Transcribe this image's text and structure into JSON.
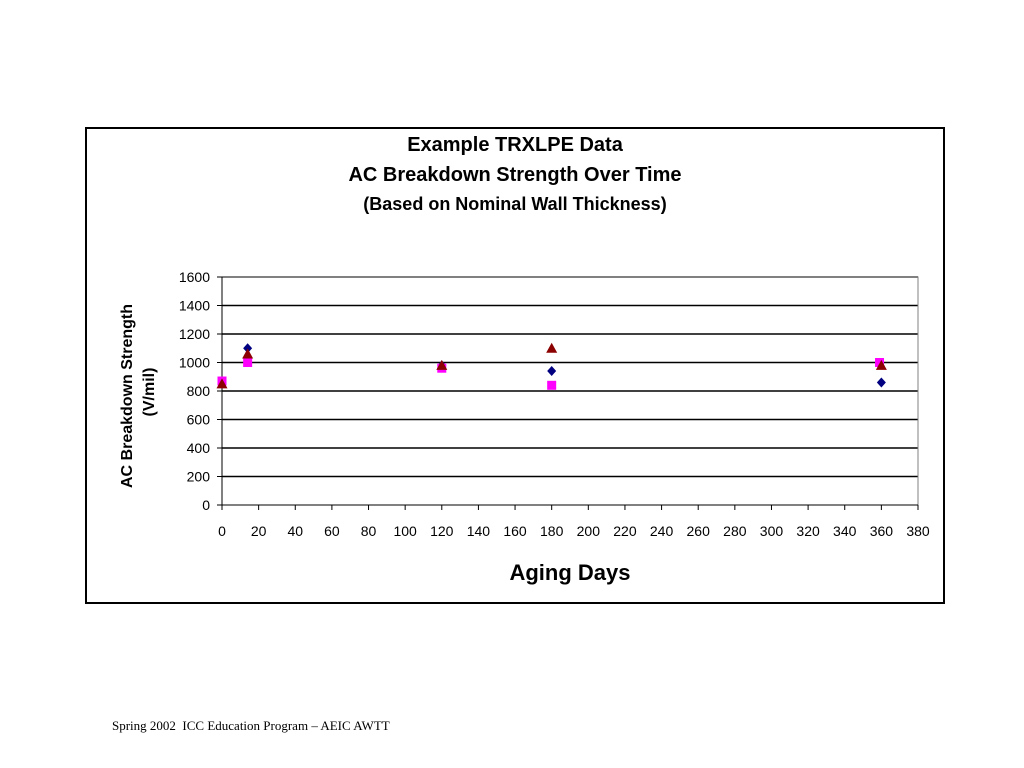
{
  "footer": "Spring 2002  ICC Education Program – AEIC AWTT",
  "chart_data": {
    "type": "scatter",
    "title_lines": [
      "Example TRXLPE Data",
      "AC Breakdown Strength Over Time",
      "(Based on Nominal Wall Thickness)"
    ],
    "xlabel": "Aging Days",
    "ylabel_lines": [
      "AC Breakdown Strength",
      "(V/mil)"
    ],
    "xlim": [
      0,
      380
    ],
    "ylim": [
      0,
      1600
    ],
    "x_ticks": [
      0,
      20,
      40,
      60,
      80,
      100,
      120,
      140,
      160,
      180,
      200,
      220,
      240,
      260,
      280,
      300,
      320,
      340,
      360,
      380
    ],
    "y_ticks": [
      0,
      200,
      400,
      600,
      800,
      1000,
      1200,
      1400,
      1600
    ],
    "grid": "horizontal",
    "legend": "none",
    "series": [
      {
        "marker": "diamond",
        "color": "#000080",
        "points": [
          [
            0,
            860
          ],
          [
            14,
            1100
          ],
          [
            120,
            980
          ],
          [
            180,
            940
          ],
          [
            360,
            860
          ]
        ]
      },
      {
        "marker": "square",
        "color": "#ff00ff",
        "points": [
          [
            0,
            870
          ],
          [
            14,
            1000
          ],
          [
            120,
            960
          ],
          [
            180,
            840
          ],
          [
            359,
            1000
          ]
        ]
      },
      {
        "marker": "triangle",
        "color": "#8b0000",
        "points": [
          [
            0,
            850
          ],
          [
            14,
            1060
          ],
          [
            120,
            980
          ],
          [
            180,
            1100
          ],
          [
            360,
            980
          ]
        ]
      }
    ]
  }
}
